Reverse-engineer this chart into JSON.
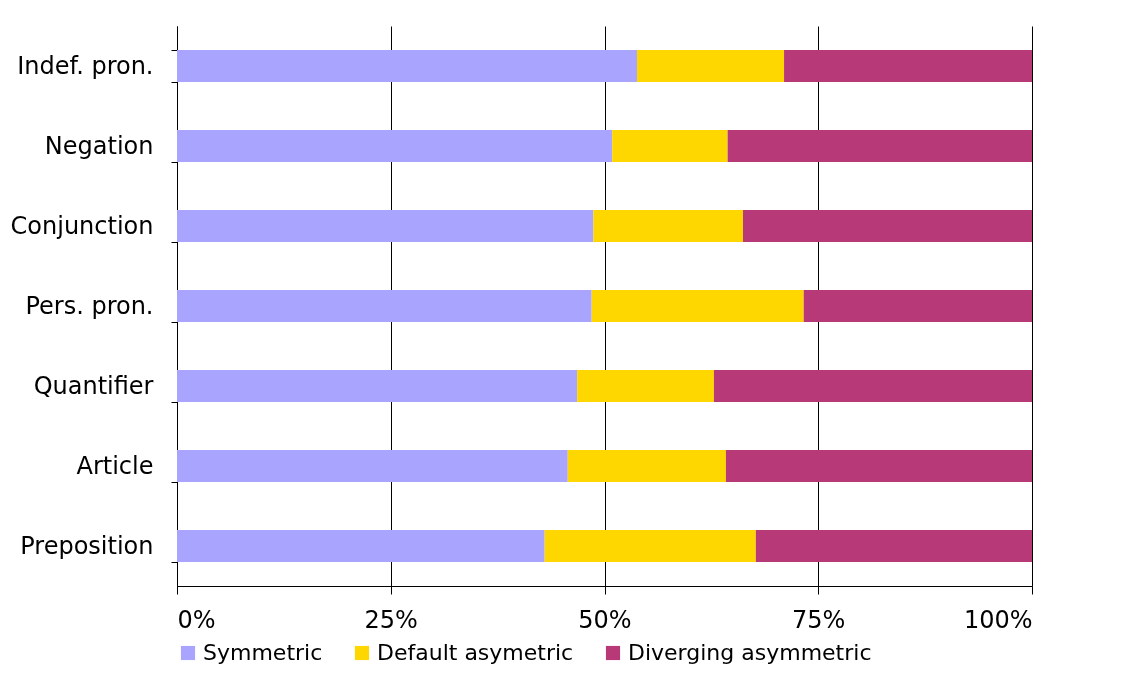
{
  "chart_data": {
    "type": "bar",
    "orientation": "horizontal",
    "stacked": true,
    "categories": [
      "Indef. pron.",
      "Negation",
      "Conjunction",
      "Pers. pron.",
      "Quantifier",
      "Article",
      "Preposition"
    ],
    "series": [
      {
        "name": "Symmetric",
        "color": "#a9a5ff",
        "values": [
          53.8,
          50.9,
          48.7,
          48.5,
          46.8,
          45.7,
          43.0
        ]
      },
      {
        "name": "Default asymetric",
        "color": "#ffd700",
        "values": [
          17.2,
          13.5,
          17.5,
          24.8,
          16.0,
          18.5,
          24.7
        ]
      },
      {
        "name": "Diverging  asymmetric",
        "color": "#b83977",
        "values": [
          29.0,
          35.6,
          33.8,
          26.7,
          37.2,
          35.8,
          32.3
        ]
      }
    ],
    "xlim": [
      0,
      100
    ],
    "xticks": [
      {
        "value": 0,
        "label": "0%"
      },
      {
        "value": 25,
        "label": "25%"
      },
      {
        "value": 50,
        "label": "50%"
      },
      {
        "value": 75,
        "label": "75%"
      },
      {
        "value": 100,
        "label": "100%"
      }
    ],
    "grid": "x",
    "legend": "bottom"
  }
}
